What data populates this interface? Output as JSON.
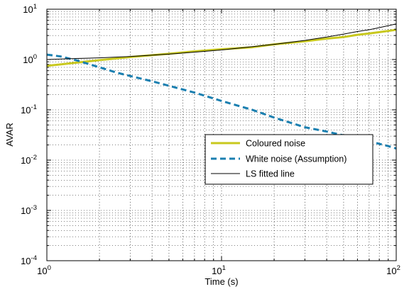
{
  "chart_data": {
    "type": "line",
    "title": "",
    "xlabel": "Time (s)",
    "ylabel": "AVAR",
    "xscale": "log",
    "yscale": "log",
    "xlim": [
      1,
      100
    ],
    "ylim": [
      0.0001,
      10
    ],
    "grid": "on (major and minor, dotted)",
    "legend_position": "center-right",
    "x_ticks": [
      {
        "value": 1,
        "base": "10",
        "exp": "0"
      },
      {
        "value": 10,
        "base": "10",
        "exp": "1"
      },
      {
        "value": 100,
        "base": "10",
        "exp": "2"
      }
    ],
    "y_ticks": [
      {
        "value": 0.0001,
        "base": "10",
        "exp": "-4"
      },
      {
        "value": 0.001,
        "base": "10",
        "exp": "-3"
      },
      {
        "value": 0.01,
        "base": "10",
        "exp": "-2"
      },
      {
        "value": 0.1,
        "base": "10",
        "exp": "-1"
      },
      {
        "value": 1,
        "base": "10",
        "exp": "0"
      },
      {
        "value": 10,
        "base": "10",
        "exp": "1"
      }
    ],
    "series": [
      {
        "name": "Coloured noise",
        "color": "#c8c81e",
        "style": "solid-thick",
        "x": [
          1,
          1.2,
          1.5,
          2,
          2.5,
          3,
          4,
          5,
          7,
          10,
          15,
          20,
          30,
          40,
          50,
          60,
          70,
          80,
          90,
          100
        ],
        "y": [
          0.75,
          0.8,
          0.87,
          0.97,
          1.05,
          1.12,
          1.22,
          1.3,
          1.45,
          1.6,
          1.75,
          2.0,
          2.3,
          2.6,
          2.8,
          3.1,
          3.3,
          3.5,
          3.7,
          3.9
        ]
      },
      {
        "name": "White noise (Assumption)",
        "color": "#1a7fb0",
        "style": "dashed-thick",
        "x": [
          1,
          1.2,
          1.5,
          2,
          2.5,
          3,
          4,
          5,
          7,
          10,
          15,
          20,
          30,
          40,
          50,
          60,
          70,
          80,
          90,
          100
        ],
        "y": [
          1.25,
          1.15,
          0.95,
          0.7,
          0.55,
          0.47,
          0.37,
          0.3,
          0.22,
          0.15,
          0.1,
          0.07,
          0.045,
          0.037,
          0.031,
          0.027,
          0.024,
          0.021,
          0.019,
          0.017
        ]
      },
      {
        "name": "LS fitted line",
        "color": "#000000",
        "style": "solid-thin",
        "x": [
          1,
          1.5,
          2,
          3,
          5,
          7,
          10,
          15,
          20,
          30,
          40,
          50,
          60,
          70,
          80,
          90,
          100
        ],
        "y": [
          1.0,
          1.05,
          1.08,
          1.15,
          1.28,
          1.4,
          1.55,
          1.8,
          2.0,
          2.4,
          2.8,
          3.2,
          3.6,
          3.9,
          4.3,
          4.7,
          5.1
        ]
      }
    ]
  }
}
